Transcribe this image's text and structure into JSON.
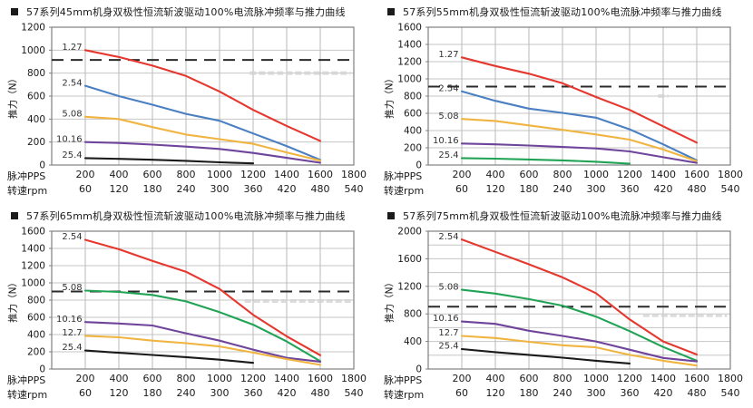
{
  "page": {
    "background": "#ffffff"
  },
  "labels": {
    "ylabel": "推力（N）",
    "xlabel_pps": "脉冲PPS",
    "xlabel_rpm": "转速rpm"
  },
  "colors": {
    "red": "#e5372e",
    "blue": "#4a7fc1",
    "yellow": "#f0b441",
    "purple": "#6f449b",
    "green": "#21a355",
    "black": "#1a1a1a",
    "dashed_line": "#2b2b2b",
    "grid": "#c6c6c6",
    "border": "#808080",
    "title_text": "#1a1a1a"
  },
  "chart_data": [
    {
      "type": "line",
      "title": "57系列45mm机身双极性恒流斩波驱动100%电流脉冲频率与推力曲线",
      "ylabel": "推力（N）",
      "xlabel_pps": "脉冲PPS",
      "xlabel_rpm": "转速rpm",
      "ymax": 1200,
      "ygrid_step": 200,
      "yticks": [
        0,
        200,
        400,
        600,
        800,
        1000,
        1200
      ],
      "xmax": 1800,
      "x_pps": [
        200,
        400,
        600,
        800,
        1000,
        1200,
        1400,
        1600,
        1800
      ],
      "x_rpm": [
        60,
        120,
        180,
        240,
        300,
        360,
        420,
        480,
        540
      ],
      "dashed_y": 915,
      "grid": true,
      "legend_position": "curve-start-labels",
      "watermark": {
        "x1": 1180,
        "x2": 1780,
        "y": 800
      },
      "series": [
        {
          "label": "1.27",
          "color": "#e5372e",
          "x": [
            200,
            400,
            600,
            800,
            1000,
            1200,
            1400,
            1600
          ],
          "y": [
            1000,
            940,
            865,
            775,
            640,
            480,
            340,
            210
          ]
        },
        {
          "label": "2.54",
          "color": "#4a7fc1",
          "x": [
            200,
            400,
            600,
            800,
            1000,
            1200,
            1400,
            1600
          ],
          "y": [
            690,
            600,
            525,
            445,
            385,
            275,
            165,
            45
          ]
        },
        {
          "label": "5.08",
          "color": "#f0b441",
          "x": [
            200,
            400,
            600,
            800,
            1000,
            1200,
            1400,
            1600
          ],
          "y": [
            420,
            400,
            330,
            265,
            225,
            185,
            110,
            38
          ]
        },
        {
          "label": "10.16",
          "color": "#6f449b",
          "x": [
            200,
            400,
            600,
            800,
            1000,
            1200,
            1400,
            1600
          ],
          "y": [
            200,
            192,
            178,
            160,
            140,
            105,
            62,
            20
          ]
        },
        {
          "label": "25.4",
          "color": "#1a1a1a",
          "x": [
            200,
            400,
            600,
            800,
            1000,
            1200
          ],
          "y": [
            60,
            54,
            46,
            36,
            24,
            14
          ]
        }
      ]
    },
    {
      "type": "line",
      "title": "57系列55mm机身双极性恒流斩波驱动100%电流脉冲频率与推力曲线",
      "ylabel": "推力（N）",
      "xlabel_pps": "脉冲PPS",
      "xlabel_rpm": "转速rpm",
      "ymax": 1600,
      "ygrid_step": 200,
      "yticks": [
        0,
        200,
        400,
        600,
        800,
        1000,
        1200,
        1400,
        1600
      ],
      "xmax": 1800,
      "x_pps": [
        200,
        400,
        600,
        800,
        1000,
        1200,
        1400,
        1600,
        1800
      ],
      "x_rpm": [
        60,
        120,
        180,
        240,
        300,
        360,
        420,
        480,
        540
      ],
      "dashed_y": 910,
      "grid": true,
      "legend_position": "curve-start-labels",
      "watermark": {
        "x1": 1370,
        "x2": 1430,
        "y": 800
      },
      "series": [
        {
          "label": "1.27",
          "color": "#e5372e",
          "x": [
            200,
            400,
            600,
            800,
            1000,
            1200,
            1400,
            1600
          ],
          "y": [
            1250,
            1150,
            1060,
            950,
            790,
            640,
            450,
            260
          ]
        },
        {
          "label": "2.54",
          "color": "#4a7fc1",
          "x": [
            200,
            400,
            600,
            800,
            1000,
            1200,
            1400,
            1600
          ],
          "y": [
            855,
            745,
            655,
            605,
            550,
            415,
            240,
            55
          ]
        },
        {
          "label": "5.08",
          "color": "#f0b441",
          "x": [
            200,
            400,
            600,
            800,
            1000,
            1200,
            1400,
            1600
          ],
          "y": [
            535,
            512,
            460,
            408,
            355,
            295,
            180,
            45
          ]
        },
        {
          "label": "10.16",
          "color": "#6f449b",
          "x": [
            200,
            400,
            600,
            800,
            1000,
            1200,
            1400,
            1600
          ],
          "y": [
            250,
            240,
            226,
            210,
            193,
            158,
            90,
            25
          ]
        },
        {
          "label": "25.4",
          "color": "#21a355",
          "x": [
            200,
            400,
            600,
            800,
            1000,
            1200
          ],
          "y": [
            80,
            74,
            64,
            54,
            38,
            15
          ]
        }
      ]
    },
    {
      "type": "line",
      "title": "57系列65mm机身双极性恒流斩波驱动100%电流脉冲频率与推力曲线",
      "ylabel": "推力（N）",
      "xlabel_pps": "脉冲PPS",
      "xlabel_rpm": "转速rpm",
      "ymax": 1600,
      "ygrid_step": 200,
      "yticks": [
        0,
        200,
        400,
        600,
        800,
        1000,
        1200,
        1400,
        1600
      ],
      "xmax": 1800,
      "x_pps": [
        200,
        400,
        600,
        800,
        1000,
        1200,
        1400,
        1600,
        1800
      ],
      "x_rpm": [
        60,
        120,
        180,
        240,
        300,
        360,
        420,
        480,
        540
      ],
      "dashed_y": 900,
      "grid": true,
      "legend_position": "curve-start-labels",
      "watermark": {
        "x1": 1150,
        "x2": 1790,
        "y": 790
      },
      "series": [
        {
          "label": "2.54",
          "color": "#e5372e",
          "x": [
            200,
            400,
            600,
            800,
            1000,
            1200,
            1400,
            1600
          ],
          "y": [
            1500,
            1390,
            1255,
            1130,
            930,
            630,
            380,
            160
          ]
        },
        {
          "label": "5.08",
          "color": "#21a355",
          "x": [
            200,
            400,
            600,
            800,
            1000,
            1200,
            1400,
            1600
          ],
          "y": [
            910,
            895,
            860,
            785,
            660,
            515,
            320,
            90
          ]
        },
        {
          "label": "10.16",
          "color": "#6f449b",
          "x": [
            200,
            400,
            600,
            800,
            1000,
            1200,
            1400,
            1600
          ],
          "y": [
            545,
            528,
            505,
            415,
            330,
            225,
            130,
            85
          ]
        },
        {
          "label": "12.7",
          "color": "#f0b441",
          "x": [
            200,
            400,
            600,
            800,
            1000,
            1200,
            1400,
            1600
          ],
          "y": [
            385,
            368,
            330,
            300,
            262,
            190,
            115,
            48
          ]
        },
        {
          "label": "25.4",
          "color": "#1a1a1a",
          "x": [
            200,
            400,
            600,
            800,
            1000,
            1200
          ],
          "y": [
            215,
            188,
            163,
            138,
            108,
            72
          ]
        }
      ]
    },
    {
      "type": "line",
      "title": "57系列75mm机身双极性恒流斩波驱动100%电流脉冲频率与推力曲线",
      "ylabel": "推力（N）",
      "xlabel_pps": "脉冲PPS",
      "xlabel_rpm": "转速rpm",
      "ymax": 2000,
      "ygrid_step": 200,
      "yticks": [
        0,
        400,
        800,
        1200,
        1600,
        2000
      ],
      "xmax": 1800,
      "x_pps": [
        200,
        400,
        600,
        800,
        1000,
        1200,
        1400,
        1600,
        1800
      ],
      "x_rpm": [
        60,
        120,
        180,
        240,
        300,
        360,
        420,
        480,
        540
      ],
      "dashed_y": 905,
      "grid": true,
      "legend_position": "curve-start-labels",
      "watermark": {
        "x1": 1280,
        "x2": 1780,
        "y": 780
      },
      "series": [
        {
          "label": "2.54",
          "color": "#e5372e",
          "x": [
            200,
            400,
            600,
            800,
            1000,
            1200,
            1400,
            1600
          ],
          "y": [
            1880,
            1700,
            1520,
            1330,
            1100,
            720,
            400,
            210
          ]
        },
        {
          "label": "5.08",
          "color": "#21a355",
          "x": [
            200,
            400,
            600,
            800,
            1000,
            1200,
            1400,
            1600
          ],
          "y": [
            1150,
            1095,
            1015,
            920,
            760,
            550,
            320,
            120
          ]
        },
        {
          "label": "10.16",
          "color": "#6f449b",
          "x": [
            200,
            400,
            600,
            800,
            1000,
            1200,
            1400,
            1600
          ],
          "y": [
            690,
            655,
            555,
            480,
            400,
            280,
            160,
            110
          ]
        },
        {
          "label": "12.7",
          "color": "#f0b441",
          "x": [
            200,
            400,
            600,
            800,
            1000,
            1200,
            1400,
            1600
          ],
          "y": [
            480,
            450,
            395,
            345,
            315,
            205,
            120,
            50
          ]
        },
        {
          "label": "25.4",
          "color": "#1a1a1a",
          "x": [
            200,
            400,
            600,
            800,
            1000,
            1200
          ],
          "y": [
            290,
            245,
            205,
            165,
            120,
            80
          ]
        }
      ]
    }
  ]
}
